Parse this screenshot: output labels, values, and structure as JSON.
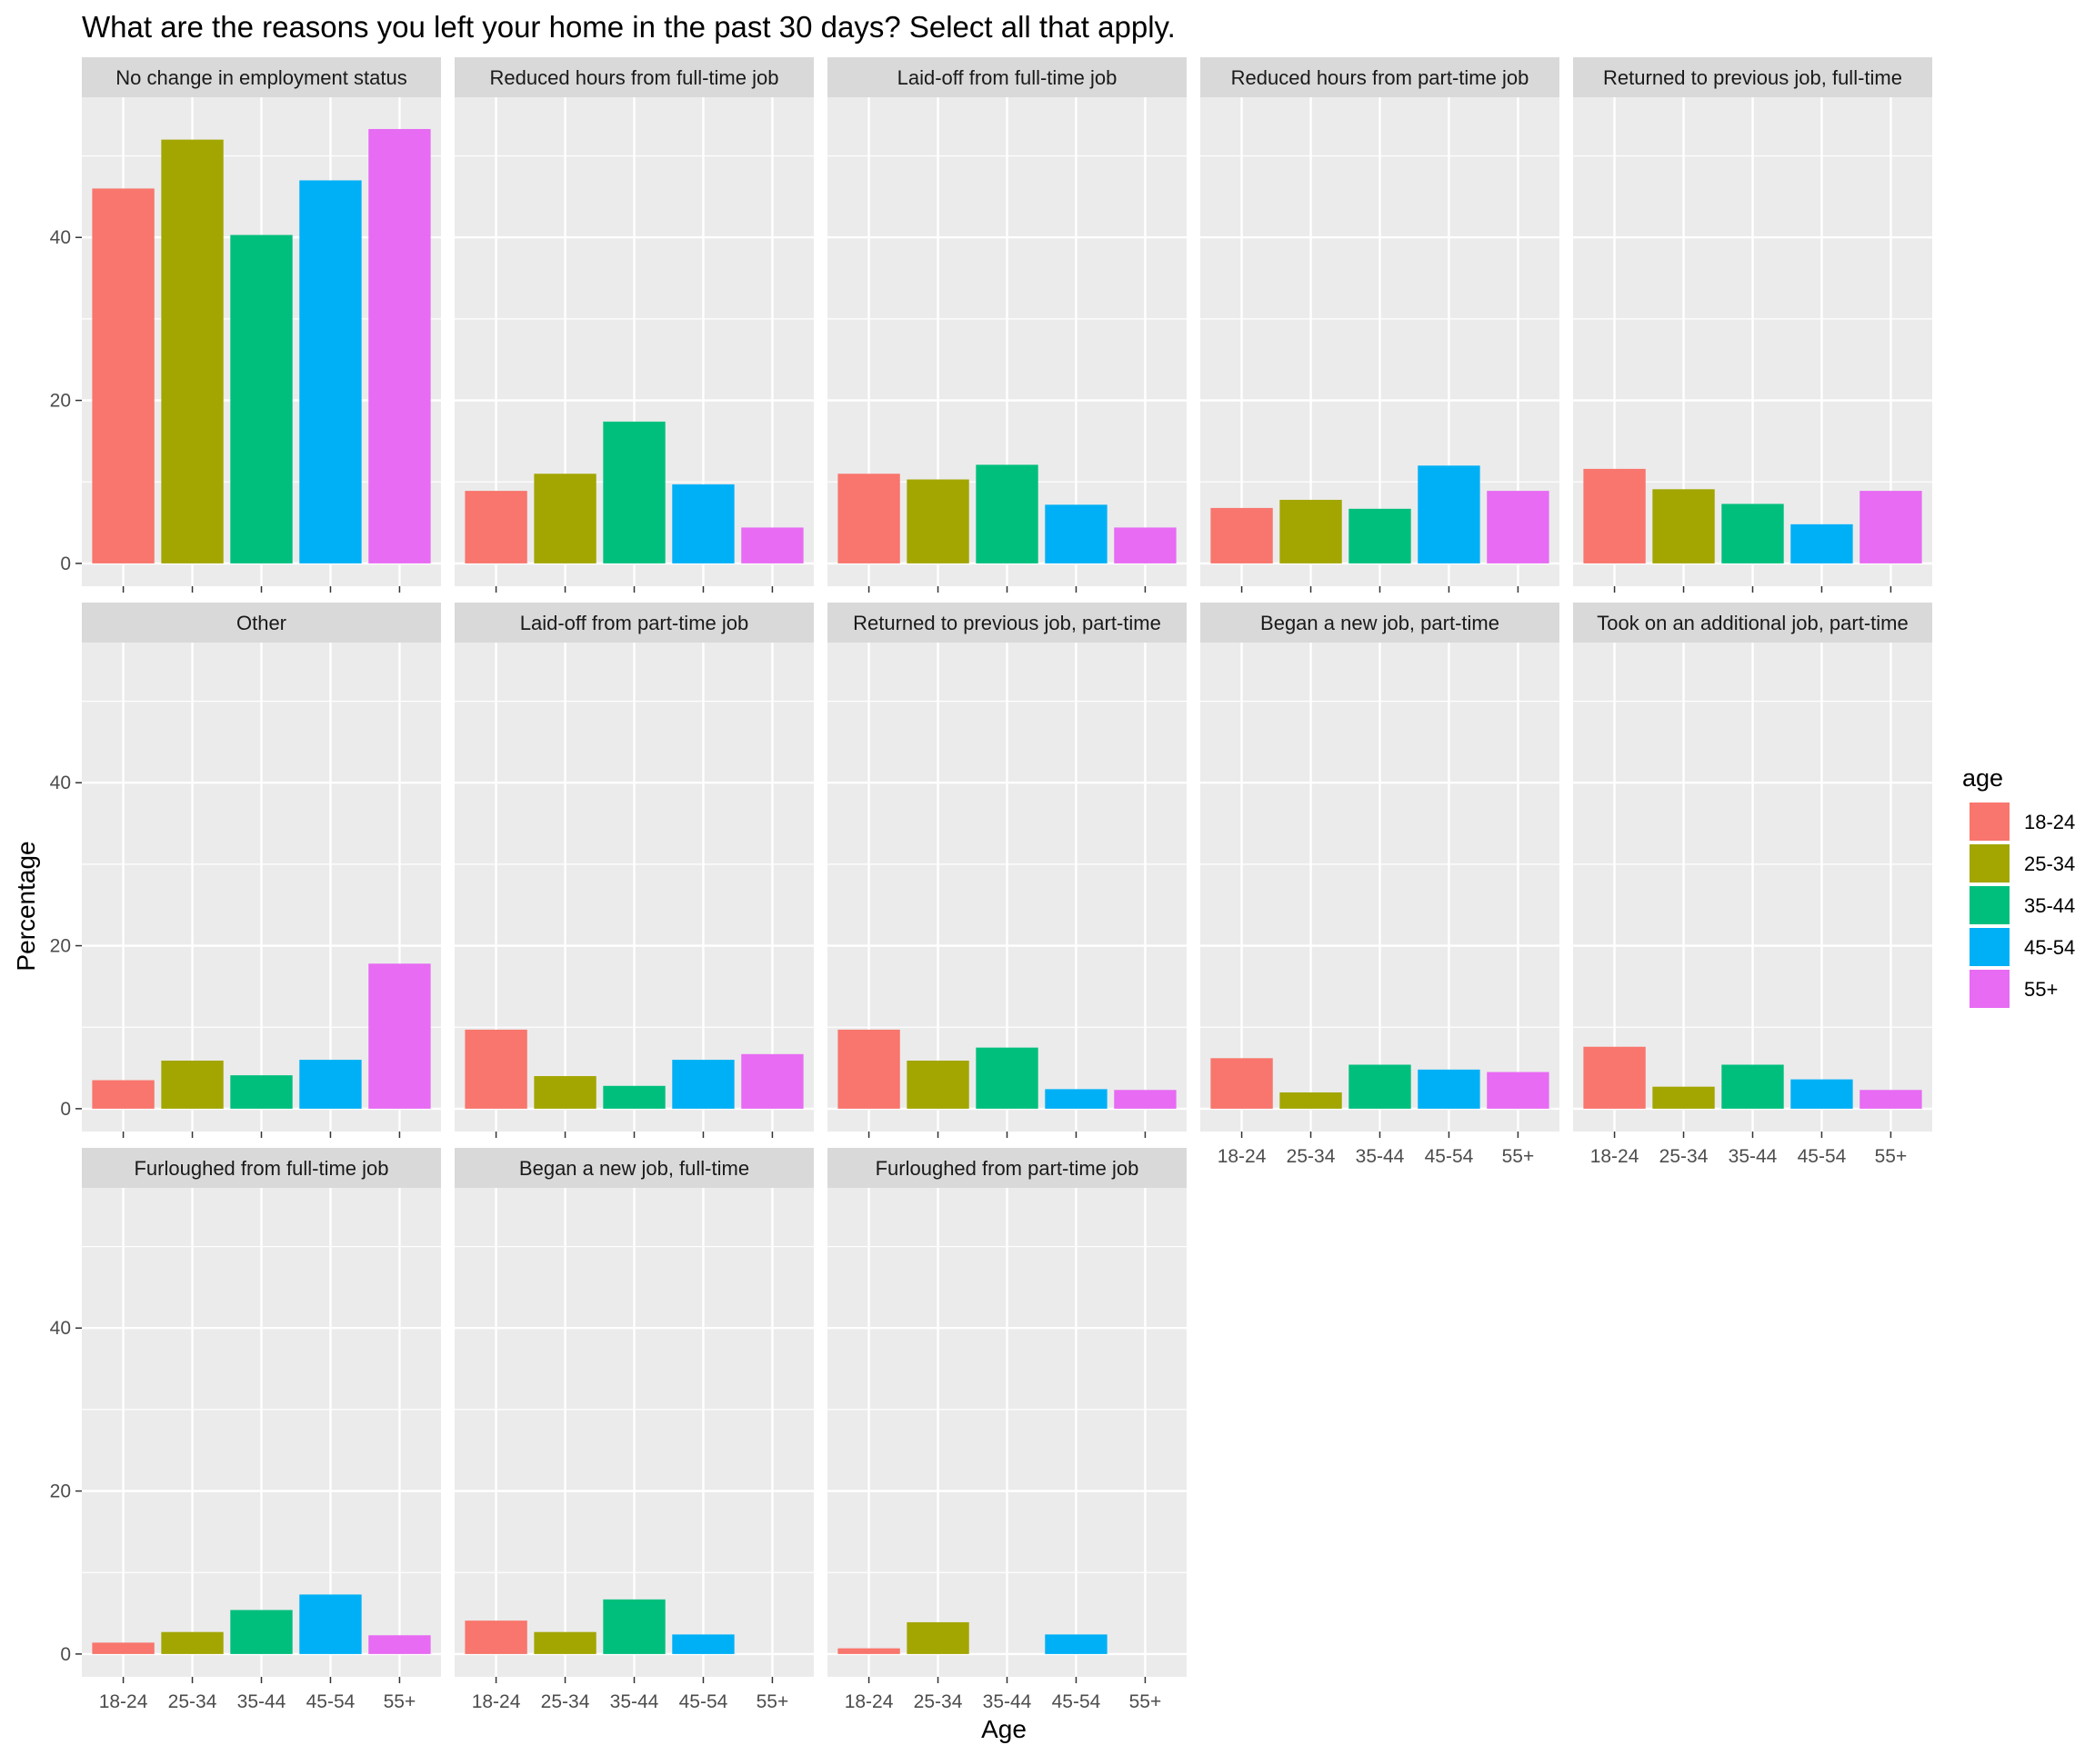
{
  "chart_data": {
    "type": "bar",
    "title": "What are the reasons you left your home in the past 30 days? Select all that apply.",
    "xlabel": "Age",
    "ylabel": "Percentage",
    "categories": [
      "18-24",
      "25-34",
      "35-44",
      "45-54",
      "55+"
    ],
    "y_ticks": [
      0,
      20,
      40
    ],
    "ylim": [
      -2.8,
      57.2
    ],
    "grid": true,
    "legend": {
      "title": "age",
      "placement": "right",
      "entries": [
        "18-24",
        "25-34",
        "35-44",
        "45-54",
        "55+"
      ]
    },
    "colors": [
      "#F8766D",
      "#A3A500",
      "#00BF7D",
      "#00B0F6",
      "#E76BF3"
    ],
    "panels": [
      {
        "name": "No change in employment status",
        "values": [
          46,
          52,
          40.3,
          47,
          53.3
        ]
      },
      {
        "name": "Reduced hours from full-time job",
        "values": [
          8.9,
          11,
          17.4,
          9.7,
          4.4
        ]
      },
      {
        "name": "Laid-off from full-time job",
        "values": [
          11,
          10.3,
          12.1,
          7.2,
          4.4
        ]
      },
      {
        "name": "Reduced hours from part-time job",
        "values": [
          6.8,
          7.8,
          6.7,
          12,
          8.9
        ]
      },
      {
        "name": "Returned to previous job, full-time",
        "values": [
          11.6,
          9.1,
          7.3,
          4.8,
          8.9
        ]
      },
      {
        "name": "Other",
        "values": [
          3.5,
          5.9,
          4.1,
          6,
          17.8
        ]
      },
      {
        "name": "Laid-off from part-time job",
        "values": [
          9.7,
          4,
          2.8,
          6,
          6.7
        ]
      },
      {
        "name": "Returned to previous job, part-time",
        "values": [
          9.7,
          5.9,
          7.5,
          2.4,
          2.3
        ]
      },
      {
        "name": "Began a new job, part-time",
        "values": [
          6.2,
          2,
          5.4,
          4.8,
          4.5
        ]
      },
      {
        "name": "Took on an additional job, part-time",
        "values": [
          7.6,
          2.7,
          5.4,
          3.6,
          2.3
        ]
      },
      {
        "name": "Furloughed from full-time job",
        "values": [
          1.4,
          2.7,
          5.4,
          7.3,
          2.3
        ]
      },
      {
        "name": "Began a new job, full-time",
        "values": [
          4.1,
          2.7,
          6.7,
          2.4,
          0
        ]
      },
      {
        "name": "Furloughed from part-time job",
        "values": [
          0.7,
          3.9,
          0,
          2.4,
          0
        ]
      }
    ]
  }
}
